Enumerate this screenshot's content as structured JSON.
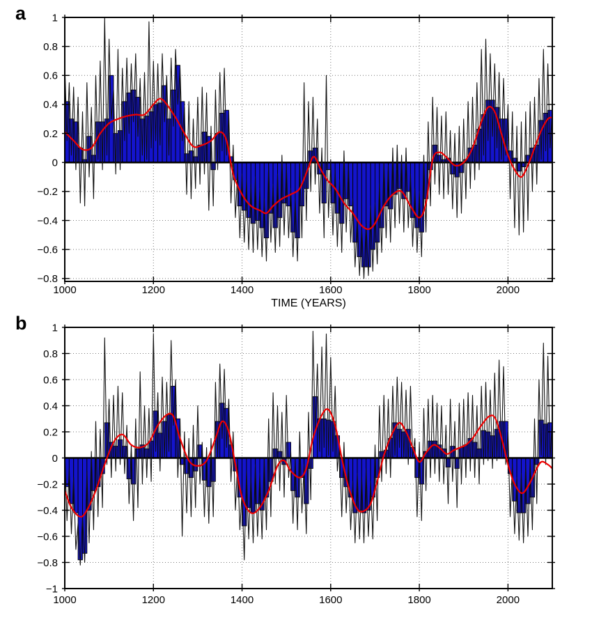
{
  "figure": {
    "background": "#ffffff",
    "colors": {
      "bar_fill": "#1414cc",
      "bar_edge": "#000000",
      "annual_line": "#111111",
      "smoothed_line": "#ee0000",
      "grid": "#777777",
      "frame": "#000000"
    }
  },
  "chart_data": [
    {
      "type": "bar+line",
      "panel_label": "a",
      "xlabel": "TIME (YEARS)",
      "xlim": [
        1000,
        2100
      ],
      "ylim": [
        -0.82,
        1
      ],
      "xticks": {
        "values": [
          1000,
          1200,
          1400,
          1600,
          1800,
          2000
        ],
        "labels": [
          "1000",
          "1200",
          "1400",
          "1600",
          "1800",
          "2000"
        ]
      },
      "yticks": {
        "values": [
          1,
          0.8,
          0.6,
          0.4,
          0.2,
          0,
          -0.2,
          -0.4,
          -0.6,
          -0.8
        ],
        "labels": [
          "1",
          "0.8",
          "0.6",
          "0.4",
          "0.2",
          "0",
          "−0.2",
          "−0.4",
          "−0.6",
          "−0.8"
        ]
      },
      "grid": "dotted",
      "legend": "none",
      "series": [
        {
          "name": "decadal-mean-bars",
          "type": "bar",
          "start": 1000,
          "step": 10,
          "values": [
            0.42,
            0.3,
            0.28,
            0.1,
            0.02,
            0.18,
            0.05,
            0.28,
            0.28,
            0.3,
            0.6,
            0.2,
            0.22,
            0.42,
            0.48,
            0.5,
            0.45,
            0.3,
            0.32,
            0.35,
            0.4,
            0.41,
            0.53,
            0.3,
            0.5,
            0.67,
            0.42,
            0.06,
            0.08,
            0.04,
            0.12,
            0.21,
            0.18,
            -0.05,
            0.2,
            0.34,
            0.36,
            0.04,
            -0.12,
            -0.3,
            -0.33,
            -0.38,
            -0.42,
            -0.4,
            -0.45,
            -0.52,
            -0.35,
            -0.45,
            -0.38,
            -0.28,
            -0.3,
            -0.48,
            -0.52,
            -0.3,
            -0.18,
            0.08,
            0.1,
            -0.08,
            -0.28,
            -0.05,
            -0.28,
            -0.35,
            -0.42,
            -0.25,
            -0.3,
            -0.55,
            -0.65,
            -0.72,
            -0.72,
            -0.6,
            -0.55,
            -0.45,
            -0.3,
            -0.32,
            -0.22,
            -0.18,
            -0.25,
            -0.2,
            -0.38,
            -0.45,
            -0.48,
            -0.25,
            -0.05,
            0.12,
            0.05,
            0.02,
            0.03,
            -0.08,
            -0.1,
            -0.07,
            0.02,
            0.1,
            0.12,
            0.23,
            0.33,
            0.43,
            0.43,
            0.38,
            0.3,
            0.3,
            0.08,
            0.03,
            -0.06,
            -0.03,
            0.05,
            0.1,
            0.12,
            0.29,
            0.34,
            0.36
          ]
        },
        {
          "name": "annual-values",
          "type": "line",
          "start": 1000,
          "step": 5,
          "values": [
            0.68,
            0.15,
            0.55,
            0.05,
            0.52,
            -0.05,
            0.45,
            -0.28,
            0.35,
            -0.3,
            0.55,
            -0.1,
            0.38,
            -0.25,
            0.6,
            0.02,
            0.7,
            -0.05,
            1.0,
            0.05,
            0.85,
            0.3,
            0.5,
            -0.08,
            0.78,
            -0.05,
            0.65,
            0.15,
            0.72,
            0.2,
            0.68,
            0.28,
            0.75,
            0.18,
            0.58,
            0.05,
            0.62,
            0.02,
            0.97,
            0.1,
            0.7,
            0.15,
            0.68,
            0.12,
            0.75,
            0.28,
            0.6,
            0.05,
            0.72,
            0.25,
            0.78,
            0.4,
            0.65,
            0.15,
            0.38,
            -0.22,
            0.42,
            -0.25,
            0.3,
            -0.18,
            0.45,
            -0.15,
            0.52,
            -0.08,
            0.48,
            -0.33,
            0.25,
            -0.3,
            0.5,
            -0.05,
            0.62,
            0.08,
            0.65,
            0.05,
            0.35,
            -0.28,
            0.12,
            -0.38,
            -0.05,
            -0.52,
            -0.08,
            -0.55,
            -0.12,
            -0.6,
            -0.15,
            -0.62,
            -0.1,
            -0.6,
            -0.18,
            -0.65,
            -0.25,
            -0.68,
            -0.02,
            -0.55,
            -0.15,
            -0.62,
            -0.08,
            -0.58,
            0.05,
            -0.5,
            -0.02,
            -0.52,
            -0.18,
            -0.65,
            -0.25,
            -0.68,
            0.0,
            -0.52,
            0.55,
            -0.4,
            0.42,
            -0.2,
            0.45,
            -0.15,
            0.3,
            -0.35,
            0.1,
            -0.52,
            0.6,
            -0.38,
            0.02,
            -0.5,
            -0.05,
            -0.58,
            -0.12,
            -0.62,
            0.08,
            -0.48,
            -0.02,
            -0.55,
            -0.25,
            -0.72,
            -0.38,
            -0.78,
            -0.45,
            -0.8,
            -0.42,
            -0.78,
            -0.3,
            -0.75,
            -0.28,
            -0.7,
            -0.15,
            -0.62,
            0.0,
            -0.52,
            -0.02,
            -0.55,
            0.1,
            -0.45,
            0.12,
            -0.42,
            0.05,
            -0.48,
            0.1,
            -0.45,
            -0.08,
            -0.58,
            -0.18,
            -0.62,
            -0.2,
            -0.65,
            0.05,
            -0.48,
            0.28,
            -0.3,
            0.45,
            -0.15,
            0.38,
            -0.22,
            0.32,
            -0.25,
            0.35,
            -0.22,
            0.22,
            -0.32,
            0.2,
            -0.38,
            0.25,
            -0.35,
            0.3,
            -0.25,
            0.42,
            -0.18,
            0.45,
            -0.12,
            0.55,
            -0.05,
            0.78,
            0.05,
            0.85,
            0.15,
            0.75,
            0.18,
            0.68,
            0.1,
            0.62,
            0.02,
            0.58,
            0.05,
            0.4,
            -0.25,
            0.35,
            -0.45,
            0.25,
            -0.5,
            0.28,
            -0.48,
            0.35,
            -0.4,
            0.42,
            -0.2,
            0.45,
            -0.15,
            0.58,
            0.02,
            0.78,
            0.08,
            0.68,
            0.1,
            0.35
          ]
        },
        {
          "name": "smoothed-low-frequency",
          "type": "line",
          "x": [
            1000,
            1020,
            1040,
            1060,
            1080,
            1100,
            1120,
            1140,
            1160,
            1180,
            1200,
            1215,
            1230,
            1250,
            1270,
            1290,
            1310,
            1330,
            1350,
            1365,
            1380,
            1400,
            1420,
            1440,
            1455,
            1470,
            1490,
            1510,
            1530,
            1548,
            1562,
            1578,
            1592,
            1610,
            1630,
            1650,
            1668,
            1685,
            1700,
            1720,
            1740,
            1760,
            1780,
            1800,
            1815,
            1830,
            1845,
            1860,
            1880,
            1900,
            1920,
            1940,
            1955,
            1970,
            1985,
            2000,
            2015,
            2030,
            2045,
            2060,
            2075,
            2090,
            2100
          ],
          "y": [
            0.21,
            0.15,
            0.09,
            0.1,
            0.2,
            0.27,
            0.3,
            0.32,
            0.33,
            0.33,
            0.4,
            0.44,
            0.4,
            0.31,
            0.2,
            0.11,
            0.12,
            0.15,
            0.21,
            0.15,
            -0.08,
            -0.22,
            -0.3,
            -0.33,
            -0.35,
            -0.3,
            -0.25,
            -0.22,
            -0.18,
            -0.05,
            0.04,
            -0.05,
            -0.12,
            -0.18,
            -0.28,
            -0.35,
            -0.43,
            -0.46,
            -0.42,
            -0.3,
            -0.22,
            -0.2,
            -0.3,
            -0.38,
            -0.28,
            0.02,
            0.07,
            0.04,
            -0.02,
            0.0,
            0.1,
            0.28,
            0.38,
            0.35,
            0.2,
            0.05,
            -0.05,
            -0.1,
            -0.02,
            0.1,
            0.22,
            0.3,
            0.31
          ]
        }
      ]
    },
    {
      "type": "bar+line",
      "panel_label": "b",
      "xlabel": "",
      "xlim": [
        1000,
        2100
      ],
      "ylim": [
        -1,
        1
      ],
      "xticks": {
        "values": [
          1000,
          1200,
          1400,
          1600,
          1800,
          2000
        ],
        "labels": [
          "1000",
          "1200",
          "1400",
          "1600",
          "1800",
          "2000"
        ]
      },
      "yticks": {
        "values": [
          1,
          0.8,
          0.6,
          0.4,
          0.2,
          0,
          -0.2,
          -0.4,
          -0.6,
          -0.8,
          -1
        ],
        "labels": [
          "1",
          "0.8",
          "0.6",
          "0.4",
          "0.2",
          "0",
          "−0.2",
          "−0.4",
          "−0.6",
          "−0.8",
          "−1"
        ]
      },
      "grid": "dotted",
      "legend": "none",
      "series": [
        {
          "name": "decadal-mean-bars",
          "type": "bar",
          "start": 1000,
          "step": 10,
          "values": [
            -0.22,
            -0.35,
            -0.42,
            -0.78,
            -0.73,
            -0.4,
            -0.25,
            -0.22,
            -0.12,
            0.27,
            0.12,
            0.09,
            0.14,
            0.09,
            -0.16,
            -0.2,
            0.07,
            0.1,
            0.07,
            0.13,
            0.36,
            0.19,
            0.28,
            0.33,
            0.55,
            0.3,
            -0.05,
            -0.12,
            -0.15,
            -0.1,
            0.1,
            -0.17,
            -0.22,
            -0.18,
            0.28,
            0.42,
            0.38,
            0.1,
            -0.1,
            -0.3,
            -0.52,
            -0.38,
            -0.42,
            -0.35,
            -0.4,
            -0.3,
            -0.18,
            0.07,
            0.05,
            -0.05,
            0.12,
            -0.25,
            -0.3,
            -0.15,
            -0.35,
            -0.08,
            0.47,
            0.3,
            0.3,
            0.29,
            0.28,
            0.17,
            -0.15,
            -0.22,
            -0.3,
            -0.42,
            -0.4,
            -0.42,
            -0.4,
            -0.3,
            -0.15,
            0.05,
            0.06,
            0.15,
            0.27,
            0.22,
            0.2,
            0.22,
            0.08,
            -0.15,
            -0.2,
            0.05,
            0.13,
            0.13,
            0.1,
            0.07,
            -0.07,
            0.09,
            -0.08,
            0.08,
            0.1,
            0.15,
            0.12,
            0.07,
            0.21,
            0.2,
            0.17,
            0.22,
            0.28,
            0.28,
            -0.12,
            -0.33,
            -0.42,
            -0.42,
            -0.35,
            -0.3,
            -0.05,
            0.29,
            0.26,
            0.27
          ]
        },
        {
          "name": "annual-values",
          "type": "line",
          "start": 1000,
          "step": 5,
          "values": [
            0.05,
            -0.48,
            -0.08,
            -0.58,
            -0.15,
            -0.7,
            -0.5,
            -0.82,
            -0.45,
            -0.8,
            -0.1,
            -0.65,
            0.05,
            -0.55,
            0.28,
            -0.45,
            0.22,
            -0.38,
            0.92,
            -0.05,
            0.45,
            -0.15,
            0.48,
            -0.1,
            0.55,
            -0.05,
            0.5,
            -0.12,
            0.25,
            -0.35,
            0.1,
            -0.48,
            0.3,
            -0.38,
            0.66,
            -0.2,
            0.4,
            -0.15,
            0.38,
            -0.18,
            0.95,
            0.05,
            0.5,
            -0.1,
            0.62,
            0.0,
            0.58,
            0.05,
            0.9,
            0.25,
            0.6,
            -0.15,
            0.3,
            -0.6,
            0.2,
            -0.42,
            0.15,
            -0.45,
            0.25,
            -0.38,
            0.4,
            -0.2,
            0.12,
            -0.45,
            0.08,
            -0.5,
            0.15,
            -0.45,
            0.58,
            0.0,
            0.72,
            0.15,
            0.68,
            0.08,
            0.45,
            -0.18,
            0.2,
            -0.4,
            -0.02,
            -0.55,
            -0.25,
            -0.78,
            -0.1,
            -0.62,
            -0.15,
            -0.65,
            -0.05,
            -0.6,
            -0.12,
            -0.62,
            0.0,
            -0.55,
            0.3,
            -0.45,
            0.5,
            -0.2,
            0.4,
            -0.25,
            0.35,
            -0.3,
            0.48,
            -0.15,
            0.05,
            -0.5,
            0.0,
            -0.55,
            0.2,
            -0.42,
            -0.05,
            -0.58,
            0.35,
            -0.32,
            0.97,
            0.2,
            0.72,
            0.05,
            0.85,
            0.08,
            0.95,
            0.02,
            0.77,
            0.05,
            0.55,
            -0.1,
            0.1,
            -0.45,
            0.12,
            -0.42,
            -0.02,
            -0.55,
            -0.18,
            -0.65,
            -0.12,
            -0.62,
            -0.15,
            -0.65,
            -0.08,
            -0.6,
            -0.18,
            -0.62,
            0.1,
            -0.48,
            0.4,
            -0.18,
            0.48,
            -0.12,
            0.45,
            -0.15,
            0.55,
            0.02,
            0.62,
            0.08,
            0.58,
            0.0,
            0.52,
            -0.05,
            0.55,
            0.0,
            0.15,
            -0.45,
            0.12,
            -0.48,
            0.38,
            -0.25,
            0.45,
            -0.15,
            0.48,
            -0.12,
            0.42,
            -0.18,
            0.4,
            -0.2,
            0.25,
            -0.35,
            0.45,
            -0.18,
            0.28,
            -0.38,
            0.42,
            -0.2,
            0.45,
            -0.15,
            0.5,
            -0.1,
            0.48,
            -0.15,
            0.4,
            -0.2,
            0.55,
            -0.05,
            0.58,
            -0.02,
            0.52,
            -0.08,
            0.65,
            -0.02,
            0.75,
            0.0,
            0.7,
            -0.05,
            0.2,
            -0.45,
            -0.05,
            -0.58,
            -0.15,
            -0.63,
            -0.12,
            -0.65,
            -0.05,
            -0.6,
            0.0,
            -0.55,
            0.3,
            -0.35,
            0.6,
            0.02,
            0.88,
            -0.05,
            0.78,
            0.0,
            0.3
          ]
        },
        {
          "name": "smoothed-low-frequency",
          "type": "line",
          "x": [
            1000,
            1015,
            1035,
            1050,
            1070,
            1090,
            1110,
            1130,
            1150,
            1170,
            1190,
            1210,
            1230,
            1245,
            1260,
            1280,
            1300,
            1320,
            1340,
            1355,
            1370,
            1385,
            1400,
            1420,
            1440,
            1460,
            1480,
            1495,
            1510,
            1530,
            1545,
            1560,
            1580,
            1595,
            1610,
            1625,
            1640,
            1658,
            1672,
            1690,
            1705,
            1720,
            1738,
            1755,
            1770,
            1785,
            1800,
            1815,
            1832,
            1848,
            1862,
            1878,
            1892,
            1905,
            1920,
            1940,
            1958,
            1972,
            1988,
            2000,
            2015,
            2032,
            2048,
            2062,
            2075,
            2090,
            2100
          ],
          "y": [
            -0.25,
            -0.38,
            -0.45,
            -0.4,
            -0.25,
            -0.05,
            0.12,
            0.18,
            0.1,
            0.08,
            0.12,
            0.25,
            0.33,
            0.32,
            0.15,
            -0.02,
            -0.06,
            -0.02,
            0.15,
            0.28,
            0.2,
            -0.05,
            -0.3,
            -0.42,
            -0.38,
            -0.25,
            -0.06,
            -0.02,
            -0.1,
            -0.15,
            -0.08,
            0.15,
            0.33,
            0.37,
            0.25,
            0.0,
            -0.22,
            -0.38,
            -0.41,
            -0.35,
            -0.18,
            0.02,
            0.18,
            0.27,
            0.2,
            0.08,
            -0.03,
            0.04,
            0.1,
            0.07,
            0.03,
            0.06,
            0.08,
            0.1,
            0.15,
            0.25,
            0.32,
            0.3,
            0.12,
            -0.05,
            -0.2,
            -0.27,
            -0.2,
            -0.1,
            -0.03,
            -0.05,
            -0.08
          ]
        }
      ]
    }
  ]
}
